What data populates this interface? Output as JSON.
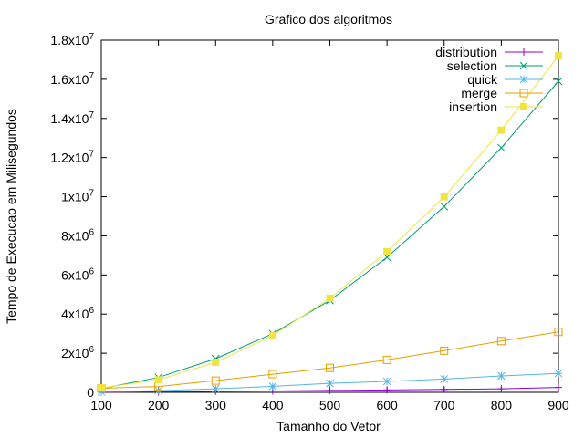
{
  "chart_data": {
    "type": "line",
    "title": "Grafico dos algoritmos",
    "xlabel": "Tamanho do Vetor",
    "ylabel": "Tempo de Execucao em Milisegundos",
    "x": [
      100,
      200,
      300,
      400,
      500,
      600,
      700,
      800,
      900
    ],
    "xlim": [
      100,
      900
    ],
    "ylim": [
      0,
      18000000
    ],
    "xticks": [
      100,
      200,
      300,
      400,
      500,
      600,
      700,
      800,
      900
    ],
    "yticks": [
      {
        "value": 0,
        "base": "0",
        "exp": ""
      },
      {
        "value": 2000000,
        "base": "2x10",
        "exp": "6"
      },
      {
        "value": 4000000,
        "base": "4x10",
        "exp": "6"
      },
      {
        "value": 6000000,
        "base": "6x10",
        "exp": "6"
      },
      {
        "value": 8000000,
        "base": "8x10",
        "exp": "6"
      },
      {
        "value": 10000000,
        "base": "1x10",
        "exp": "7"
      },
      {
        "value": 12000000,
        "base": "1.2x10",
        "exp": "7"
      },
      {
        "value": 14000000,
        "base": "1.4x10",
        "exp": "7"
      },
      {
        "value": 16000000,
        "base": "1.6x10",
        "exp": "7"
      },
      {
        "value": 18000000,
        "base": "1.8x10",
        "exp": "7"
      }
    ],
    "grid": false,
    "legend_position": "top-right",
    "series": [
      {
        "name": "distribution",
        "color": "#9400d3",
        "marker": "plus",
        "values": [
          10000,
          30000,
          50000,
          70000,
          100000,
          120000,
          150000,
          180000,
          250000
        ]
      },
      {
        "name": "selection",
        "color": "#009e73",
        "marker": "cross",
        "values": [
          190000,
          760000,
          1720000,
          3000000,
          4700000,
          6900000,
          9500000,
          12500000,
          15900000
        ]
      },
      {
        "name": "quick",
        "color": "#56b4e9",
        "marker": "star",
        "values": [
          30000,
          90000,
          180000,
          310000,
          460000,
          560000,
          680000,
          840000,
          970000
        ]
      },
      {
        "name": "merge",
        "color": "#e69f00",
        "marker": "open-square",
        "values": [
          210000,
          300000,
          600000,
          930000,
          1250000,
          1660000,
          2130000,
          2620000,
          3090000
        ]
      },
      {
        "name": "insertion",
        "color": "#f0e442",
        "marker": "filled-square",
        "values": [
          230000,
          640000,
          1540000,
          2900000,
          4810000,
          7190000,
          10000000,
          13400000,
          17200000
        ]
      }
    ]
  }
}
